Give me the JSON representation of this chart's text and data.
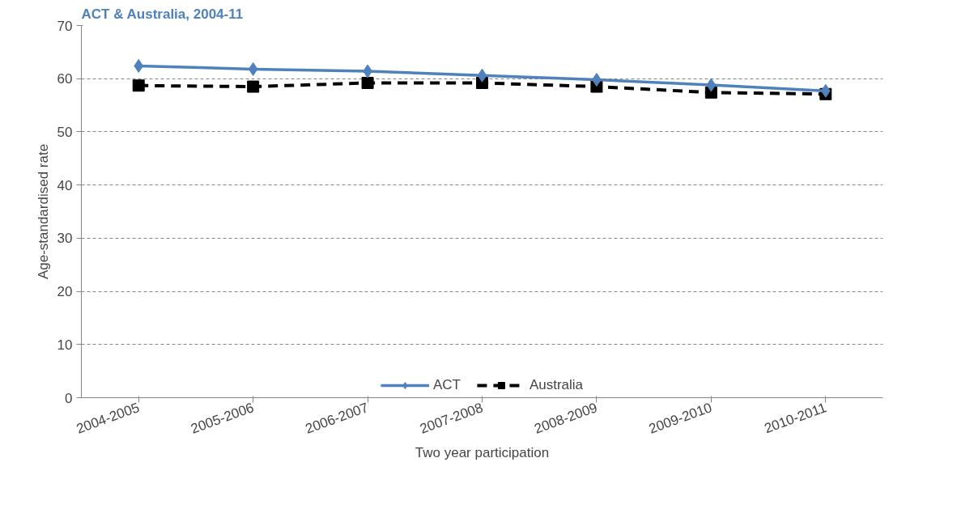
{
  "chart_data": {
    "type": "line",
    "title": "ACT & Australia, 2004-11",
    "xlabel": "Two year participation",
    "ylabel": "Age-standardised rate",
    "categories": [
      "2004-2005",
      "2005-2006",
      "2006-2007",
      "2007-2008",
      "2008-2009",
      "2009-2010",
      "2010-2011"
    ],
    "series": [
      {
        "name": "ACT",
        "color": "#4f81bd",
        "marker": "diamond",
        "line_style": "solid",
        "values": [
          62.4,
          61.8,
          61.4,
          60.6,
          59.8,
          58.8,
          57.7
        ]
      },
      {
        "name": "Australia",
        "color": "#000000",
        "marker": "square",
        "line_style": "dashed",
        "values": [
          58.7,
          58.5,
          59.2,
          59.2,
          58.5,
          57.4,
          57.1
        ]
      }
    ],
    "ylim": [
      0,
      70
    ],
    "yticks": [
      0,
      10,
      20,
      30,
      40,
      50,
      60,
      70
    ],
    "grid": "y",
    "legend": "bottom"
  }
}
